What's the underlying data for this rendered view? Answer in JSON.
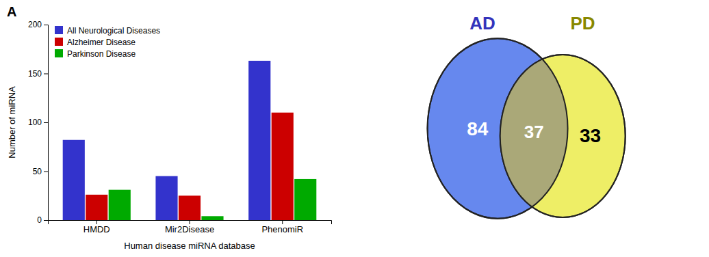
{
  "chart_data": [
    {
      "type": "bar",
      "title": "A",
      "xlabel": "Human disease miRNA database",
      "ylabel": "Number of miRNA",
      "categories": [
        "HMDD",
        "Mir2Disease",
        "PhenomiR"
      ],
      "series": [
        {
          "name": "All Neurological Diseases",
          "color": "#3333cc",
          "values": [
            82,
            45,
            163
          ]
        },
        {
          "name": "Alzheimer Disease",
          "color": "#cc0000",
          "values": [
            26,
            25,
            110
          ]
        },
        {
          "name": "Parkinson Disease",
          "color": "#00aa00",
          "values": [
            31,
            4,
            42
          ]
        }
      ],
      "ylim": [
        0,
        200
      ],
      "yticks": [
        0,
        50,
        100,
        150,
        200
      ],
      "grid": false,
      "legend": "upper left"
    },
    {
      "type": "venn",
      "series": [
        {
          "name": "AD",
          "color": "#6688ee",
          "label_color": "#3333bb",
          "text_color": "#ffffff",
          "values": [
            84
          ]
        },
        {
          "name": "PD",
          "color": "#eeee66",
          "label_color": "#888800",
          "text_color": "#000000",
          "values": [
            33
          ]
        }
      ],
      "intersection": {
        "color": "#aaa878",
        "text_color": "#ffffff",
        "values": [
          37
        ]
      }
    }
  ]
}
